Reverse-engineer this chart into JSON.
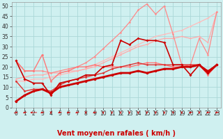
{
  "background_color": "#cff0f0",
  "grid_color": "#aad8d8",
  "xlabel": "Vent moyen/en rafales ( km/h )",
  "xlabel_color": "#cc0000",
  "xlabel_fontsize": 7,
  "xlim": [
    -0.5,
    23.5
  ],
  "ylim": [
    0,
    52
  ],
  "xticks": [
    0,
    1,
    2,
    3,
    4,
    5,
    6,
    7,
    8,
    9,
    10,
    11,
    12,
    13,
    14,
    15,
    16,
    17,
    18,
    19,
    20,
    21,
    22,
    23
  ],
  "yticks": [
    0,
    5,
    10,
    15,
    20,
    25,
    30,
    35,
    40,
    45,
    50
  ],
  "tick_fontsize": 5.5,
  "tick_color": "#333333",
  "lines": [
    {
      "x": [
        0,
        1,
        2,
        3,
        4,
        5,
        6,
        7,
        8,
        9,
        10,
        11,
        12,
        13,
        14,
        15,
        16,
        17,
        18,
        19,
        20,
        21,
        22,
        23
      ],
      "y": [
        3,
        6,
        8,
        9,
        7,
        10,
        11,
        12,
        13,
        14,
        15,
        16,
        17,
        17,
        18,
        17,
        18,
        19,
        19,
        20,
        20,
        21,
        17,
        21
      ],
      "color": "#cc0000",
      "linewidth": 2.0,
      "marker": "o",
      "markersize": 2.5,
      "zorder": 10
    },
    {
      "x": [
        0,
        1,
        2,
        3,
        4,
        5,
        6,
        7,
        8,
        9,
        10,
        11,
        12,
        13,
        14,
        15,
        16,
        17,
        18,
        19,
        20,
        21,
        22,
        23
      ],
      "y": [
        23,
        14,
        12,
        12,
        6,
        12,
        13,
        14,
        16,
        16,
        20,
        21,
        33,
        31,
        34,
        33,
        33,
        32,
        21,
        21,
        16,
        21,
        18,
        21
      ],
      "color": "#cc0000",
      "linewidth": 1.2,
      "marker": "D",
      "markersize": 2.0,
      "zorder": 8
    },
    {
      "x": [
        0,
        1,
        2,
        3,
        4,
        5,
        6,
        7,
        8,
        9,
        10,
        11,
        12,
        13,
        14,
        15,
        16,
        17,
        18,
        19,
        20,
        21,
        22,
        23
      ],
      "y": [
        13,
        8,
        9,
        9,
        8,
        11,
        13,
        14,
        15,
        16,
        17,
        19,
        20,
        21,
        22,
        21,
        21,
        21,
        21,
        21,
        21,
        21,
        18,
        21
      ],
      "color": "#dd3333",
      "linewidth": 1.0,
      "marker": "o",
      "markersize": 2.0,
      "zorder": 7
    },
    {
      "x": [
        0,
        1,
        2,
        3,
        4,
        5,
        6,
        7,
        8,
        9,
        10,
        11,
        12,
        13,
        14,
        15,
        16,
        17,
        18,
        19,
        20,
        21,
        22,
        23
      ],
      "y": [
        13,
        13,
        14,
        14,
        15,
        16,
        17,
        18,
        19,
        21,
        23,
        25,
        27,
        29,
        31,
        33,
        35,
        36,
        37,
        38,
        40,
        42,
        44,
        47
      ],
      "color": "#ffbbbb",
      "linewidth": 0.9,
      "marker": "o",
      "markersize": 1.5,
      "zorder": 3
    },
    {
      "x": [
        0,
        1,
        2,
        3,
        4,
        5,
        6,
        7,
        8,
        9,
        10,
        11,
        12,
        13,
        14,
        15,
        16,
        17,
        18,
        19,
        20,
        21,
        22,
        23
      ],
      "y": [
        14,
        15,
        16,
        16,
        17,
        17,
        18,
        18,
        19,
        20,
        22,
        24,
        26,
        28,
        30,
        31,
        33,
        34,
        34,
        35,
        34,
        35,
        32,
        47
      ],
      "color": "#ffaaaa",
      "linewidth": 0.9,
      "marker": "o",
      "markersize": 1.5,
      "zorder": 3
    },
    {
      "x": [
        0,
        1,
        2,
        3,
        4,
        5,
        6,
        7,
        8,
        9,
        10,
        11,
        12,
        13,
        14,
        15,
        16,
        17,
        18,
        19,
        20,
        21,
        22,
        23
      ],
      "y": [
        23,
        18,
        18,
        26,
        13,
        17,
        18,
        20,
        20,
        21,
        20,
        20,
        20,
        20,
        21,
        22,
        22,
        21,
        20,
        20,
        21,
        21,
        16,
        21
      ],
      "color": "#ff7777",
      "linewidth": 1.0,
      "marker": "o",
      "markersize": 2.0,
      "zorder": 6
    },
    {
      "x": [
        0,
        1,
        2,
        3,
        4,
        5,
        6,
        7,
        8,
        9,
        10,
        11,
        12,
        13,
        14,
        15,
        16,
        17,
        18,
        19,
        20,
        21,
        22,
        23
      ],
      "y": [
        23,
        18,
        18,
        18,
        17,
        18,
        19,
        20,
        22,
        25,
        29,
        33,
        37,
        42,
        48,
        51,
        46,
        50,
        36,
        21,
        21,
        34,
        26,
        47
      ],
      "color": "#ff8888",
      "linewidth": 0.9,
      "marker": "o",
      "markersize": 1.8,
      "zorder": 5
    }
  ],
  "arrow_angles": [
    45,
    225,
    180,
    225,
    270,
    225,
    225,
    225,
    270,
    225,
    270,
    270,
    270,
    270,
    270,
    270,
    270,
    270,
    270,
    270,
    225,
    270,
    225,
    225
  ]
}
